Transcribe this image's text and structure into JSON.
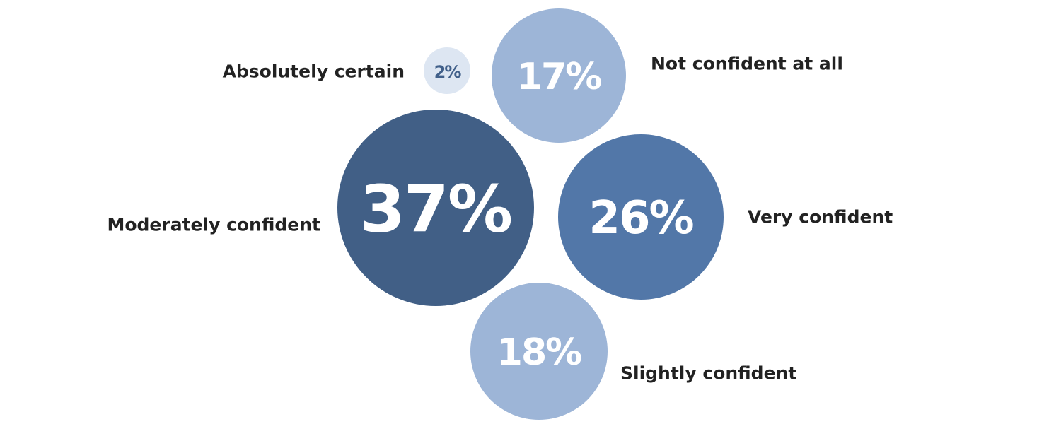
{
  "chart_data": {
    "type": "bubble",
    "unit": "%",
    "series": [
      {
        "label": "Absolutely certain",
        "value": 2,
        "display": "2%",
        "color": "#dde6f2",
        "text_color": "#41608a"
      },
      {
        "label": "Not confident at all",
        "value": 17,
        "display": "17%",
        "color": "#9db5d7",
        "text_color": "#ffffff"
      },
      {
        "label": "Moderately confident",
        "value": 37,
        "display": "37%",
        "color": "#415f86",
        "text_color": "#ffffff"
      },
      {
        "label": "Very confident",
        "value": 26,
        "display": "26%",
        "color": "#5277a8",
        "text_color": "#ffffff"
      },
      {
        "label": "Slightly confident",
        "value": 18,
        "display": "18%",
        "color": "#9db5d7",
        "text_color": "#ffffff"
      }
    ]
  }
}
